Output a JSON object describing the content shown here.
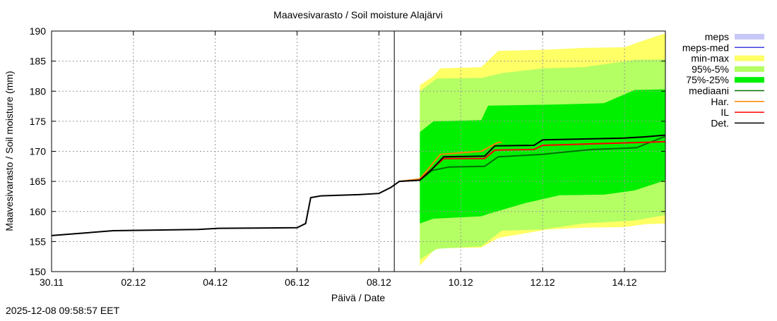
{
  "chart_data": {
    "type": "area",
    "title": "Maavesivarasto / Soil moisture   Alajärvi",
    "xlabel": "Päivä / Date",
    "ylabel": "Maavesivarasto / Soil moisture (mm)",
    "ylim": [
      150,
      190
    ],
    "xlim": [
      "2025-11-30 00:00",
      "2025-12-15 00:00"
    ],
    "yticks": [
      150,
      155,
      160,
      165,
      170,
      175,
      180,
      185,
      190
    ],
    "xticks": [
      {
        "at": "2025-11-30 00:00",
        "label": "30.11"
      },
      {
        "at": "2025-12-02 00:00",
        "label": "02.12"
      },
      {
        "at": "2025-12-04 00:00",
        "label": "04.12"
      },
      {
        "at": "2025-12-06 00:00",
        "label": "06.12"
      },
      {
        "at": "2025-12-08 00:00",
        "label": "08.12"
      },
      {
        "at": "2025-12-10 00:00",
        "label": "10.12"
      },
      {
        "at": "2025-12-12 00:00",
        "label": "12.12"
      },
      {
        "at": "2025-12-14 00:00",
        "label": "14.12"
      }
    ],
    "grid": true,
    "legend_position": "right",
    "now_line": "2025-12-08 09:00",
    "timestamp": "2025-12-08 09:58:57 EET",
    "legend": [
      {
        "name": "meps",
        "color": "#c8c8f8",
        "kind": "band"
      },
      {
        "name": "meps-med",
        "color": "#4040e0",
        "kind": "line"
      },
      {
        "name": "min-max",
        "color": "#ffff66",
        "kind": "band"
      },
      {
        "name": "95%-5%",
        "color": "#b4ff64",
        "kind": "band"
      },
      {
        "name": "75%-25%",
        "color": "#00f000",
        "kind": "band"
      },
      {
        "name": "mediaani",
        "color": "#007000",
        "kind": "line"
      },
      {
        "name": "Har.",
        "color": "#ff8000",
        "kind": "line"
      },
      {
        "name": "IL",
        "color": "#ff0000",
        "kind": "line"
      },
      {
        "name": "Det.",
        "color": "#000000",
        "kind": "line"
      }
    ],
    "bands": [
      {
        "name": "min-max",
        "color": "#ffff66",
        "x": [
          "2025-12-09 00:00",
          "2025-12-09 08:00",
          "2025-12-09 12:00",
          "2025-12-10 12:00",
          "2025-12-10 22:00",
          "2025-12-12 03:00",
          "2025-12-13 00:00",
          "2025-12-14 00:00",
          "2025-12-14 12:00",
          "2025-12-15 00:00"
        ],
        "upper": [
          181,
          182.5,
          183.8,
          184,
          186.7,
          186.9,
          187.2,
          187.3,
          188.5,
          189.6
        ],
        "lower": [
          151,
          153.5,
          153.9,
          154,
          155.6,
          157,
          157.3,
          157.4,
          157.9,
          158
        ]
      },
      {
        "name": "95%-5%",
        "color": "#b4ff64",
        "x": [
          "2025-12-09 00:00",
          "2025-12-09 10:00",
          "2025-12-10 12:00",
          "2025-12-11 00:00",
          "2025-12-12 00:00",
          "2025-12-13 00:00",
          "2025-12-14 06:00",
          "2025-12-15 00:00"
        ],
        "upper": [
          180,
          182.1,
          182.2,
          183,
          183.8,
          184,
          185.2,
          185.3
        ],
        "lower": [
          152,
          153.8,
          154.2,
          156.8,
          157,
          158,
          158.5,
          159.4
        ]
      },
      {
        "name": "75%-25%",
        "color": "#00f000",
        "x": [
          "2025-12-09 00:00",
          "2025-12-09 08:00",
          "2025-12-10 12:00",
          "2025-12-10 16:00",
          "2025-12-11 14:00",
          "2025-12-12 10:00",
          "2025-12-13 12:00",
          "2025-12-14 06:00",
          "2025-12-14 22:00",
          "2025-12-15 00:00"
        ],
        "upper": [
          173.2,
          175,
          175.2,
          177.6,
          177.7,
          177.8,
          178,
          180.2,
          180.3,
          180.3
        ],
        "lower": [
          158,
          158.8,
          159.2,
          159.6,
          161.4,
          162.7,
          162.8,
          163.5,
          165,
          165.2
        ]
      }
    ],
    "series": [
      {
        "name": "Det.",
        "color": "#000000",
        "x": [
          "2025-11-30 00:00",
          "2025-11-30 14:00",
          "2025-12-01 12:00",
          "2025-12-03 14:00",
          "2025-12-04 02:00",
          "2025-12-06 00:00",
          "2025-12-06 05:00",
          "2025-12-06 08:00",
          "2025-12-06 14:00",
          "2025-12-07 12:00",
          "2025-12-08 00:00",
          "2025-12-08 07:00",
          "2025-12-08 12:00",
          "2025-12-09 00:00",
          "2025-12-09 07:00",
          "2025-12-09 14:00",
          "2025-12-10 14:00",
          "2025-12-10 20:00",
          "2025-12-11 19:00",
          "2025-12-12 00:00",
          "2025-12-14 00:00",
          "2025-12-14 12:00",
          "2025-12-15 00:00"
        ],
        "values": [
          156,
          156.3,
          156.8,
          157,
          157.2,
          157.3,
          158,
          162.3,
          162.6,
          162.8,
          163,
          164,
          165,
          165.2,
          167,
          169.1,
          169.2,
          170.9,
          171,
          171.9,
          172.2,
          172.4,
          172.7
        ]
      },
      {
        "name": "IL",
        "color": "#ff0000",
        "x": [
          "2025-12-09 00:00",
          "2025-12-09 14:00",
          "2025-12-10 14:00",
          "2025-12-10 20:00",
          "2025-12-11 19:00",
          "2025-12-12 00:00",
          "2025-12-14 12:00",
          "2025-12-15 00:00"
        ],
        "values": [
          165.3,
          168.8,
          168.8,
          170.2,
          170.3,
          171,
          171.5,
          171.6
        ]
      },
      {
        "name": "mediaani",
        "color": "#007000",
        "x": [
          "2025-12-09 00:00",
          "2025-12-09 07:00",
          "2025-12-09 17:00",
          "2025-12-10 14:00",
          "2025-12-10 22:00",
          "2025-12-12 00:00",
          "2025-12-12 10:00",
          "2025-12-13 05:00",
          "2025-12-14 07:00",
          "2025-12-15 00:00"
        ],
        "values": [
          165.2,
          166.8,
          167.4,
          167.5,
          169.1,
          169.5,
          169.8,
          170.3,
          170.6,
          172.5
        ]
      },
      {
        "name": "Har.",
        "color": "#ff8000",
        "x": [
          "2025-12-08 12:00",
          "2025-12-09 00:00",
          "2025-12-09 12:00",
          "2025-12-10 12:00",
          "2025-12-10 22:00",
          "2025-12-11 00:00"
        ],
        "values": [
          165,
          165.4,
          169.5,
          170,
          171.5,
          171.5
        ]
      }
    ]
  }
}
